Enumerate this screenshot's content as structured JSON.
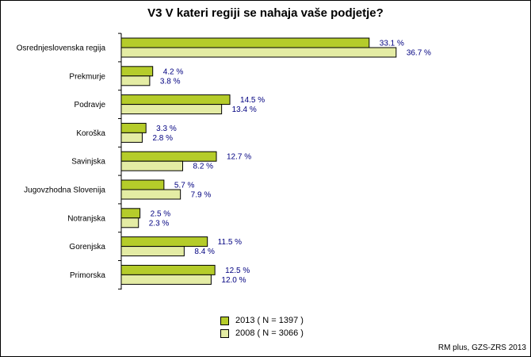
{
  "chart_data": {
    "type": "bar",
    "orientation": "horizontal",
    "title": "V3 V kateri regiji se nahaja vaše podjetje?",
    "categories": [
      "Osrednjeslovenska regija",
      "Prekmurje",
      "Podravje",
      "Koroška",
      "Savinjska",
      "Jugovzhodna Slovenija",
      "Notranjska",
      "Gorenjska",
      "Primorska"
    ],
    "series": [
      {
        "name": "2013 ( N = 1397 )",
        "color": "#b5cc2a",
        "values": [
          33.1,
          4.2,
          14.5,
          3.3,
          12.7,
          5.7,
          2.5,
          11.5,
          12.5
        ],
        "labels": [
          "33.1 %",
          "4.2 %",
          "14.5 %",
          "3.3 %",
          "12.7 %",
          "5.7 %",
          "2.5 %",
          "11.5 %",
          "12.5 %"
        ]
      },
      {
        "name": "2008 ( N = 3066 )",
        "color": "#e4eca4",
        "values": [
          36.7,
          3.8,
          13.4,
          2.8,
          8.2,
          7.9,
          2.3,
          8.4,
          12.0
        ],
        "labels": [
          "36.7 %",
          "3.8 %",
          "13.4 %",
          "2.8 %",
          "8.2 %",
          "7.9 %",
          "2.3 %",
          "8.4 %",
          "12.0 %"
        ]
      }
    ],
    "xlim": [
      0,
      40
    ],
    "grid": false,
    "legend_placement": "bottom-center"
  },
  "source": "RM plus, GZS-ZRS 2013"
}
